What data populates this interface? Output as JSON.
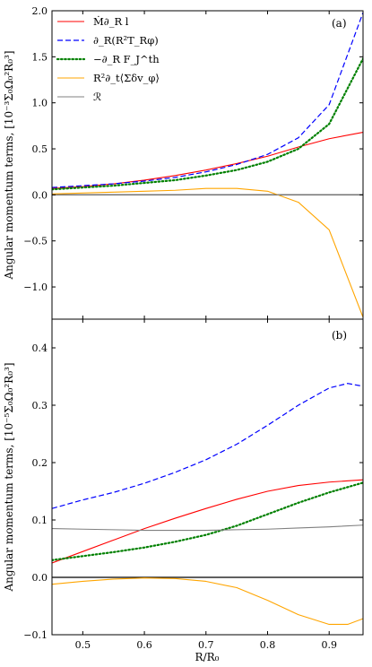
{
  "chart_data": [
    {
      "type": "line",
      "panel_label": "(a)",
      "ylabel": "Angular momentum terms, [10⁻³Σ₀Ω₀²R₀³]",
      "xlim": [
        0.45,
        0.955
      ],
      "ylim": [
        -1.35,
        2.0
      ],
      "yticks": [
        -1.0,
        -0.5,
        0.0,
        0.5,
        1.0,
        1.5,
        2.0
      ],
      "ytick_labels": [
        "−1.0",
        "−0.5",
        "0.0",
        "0.5",
        "1.0",
        "1.5",
        "2.0"
      ],
      "legend": "top-left",
      "zero_line": true,
      "series": [
        {
          "name": "Ṁ∂_R l",
          "color": "#ff0000",
          "style": "solid",
          "x": [
            0.45,
            0.5,
            0.55,
            0.6,
            0.65,
            0.7,
            0.75,
            0.8,
            0.85,
            0.9,
            0.955
          ],
          "y": [
            0.07,
            0.09,
            0.12,
            0.16,
            0.21,
            0.27,
            0.34,
            0.42,
            0.52,
            0.61,
            0.68
          ]
        },
        {
          "name": "∂_R(R²T_Rφ)",
          "color": "#0000ff",
          "style": "dashed",
          "x": [
            0.45,
            0.5,
            0.55,
            0.6,
            0.65,
            0.7,
            0.75,
            0.8,
            0.85,
            0.9,
            0.955
          ],
          "y": [
            0.08,
            0.1,
            0.12,
            0.15,
            0.19,
            0.25,
            0.33,
            0.44,
            0.62,
            0.98,
            1.98
          ]
        },
        {
          "name": "−∂_R F_J^th",
          "color": "#008000",
          "style": "dotted",
          "x": [
            0.45,
            0.5,
            0.55,
            0.6,
            0.65,
            0.7,
            0.75,
            0.8,
            0.85,
            0.9,
            0.955
          ],
          "y": [
            0.06,
            0.08,
            0.1,
            0.13,
            0.16,
            0.21,
            0.27,
            0.36,
            0.5,
            0.77,
            1.48
          ]
        },
        {
          "name": "R²∂_t⟨Σδv_φ⟩",
          "color": "#ffa500",
          "style": "solid",
          "x": [
            0.45,
            0.5,
            0.55,
            0.6,
            0.65,
            0.7,
            0.75,
            0.8,
            0.85,
            0.9,
            0.955
          ],
          "y": [
            0.01,
            0.02,
            0.03,
            0.04,
            0.05,
            0.07,
            0.07,
            0.04,
            -0.08,
            -0.38,
            -1.33
          ]
        },
        {
          "name": "ℛ",
          "color": "#808080",
          "style": "solid",
          "x": [
            0.45,
            0.55,
            0.65,
            0.75,
            0.85,
            0.955
          ],
          "y": [
            0.0,
            0.0,
            0.0,
            0.0,
            0.0,
            0.0
          ]
        }
      ]
    },
    {
      "type": "line",
      "panel_label": "(b)",
      "ylabel": "Angular momentum terms, [10⁻⁵Σ₀Ω₀²R₀³]",
      "xlabel": "R/R₀",
      "xlim": [
        0.45,
        0.955
      ],
      "ylim": [
        -0.1,
        0.45
      ],
      "xticks": [
        0.5,
        0.6,
        0.7,
        0.8,
        0.9
      ],
      "xtick_labels": [
        "0.5",
        "0.6",
        "0.7",
        "0.8",
        "0.9"
      ],
      "yticks": [
        -0.1,
        0.0,
        0.1,
        0.2,
        0.3,
        0.4
      ],
      "ytick_labels": [
        "−0.1",
        "0.0",
        "0.1",
        "0.2",
        "0.3",
        "0.4"
      ],
      "zero_line": true,
      "series": [
        {
          "name": "Ṁ∂_R l",
          "color": "#ff0000",
          "style": "solid",
          "x": [
            0.45,
            0.5,
            0.55,
            0.6,
            0.65,
            0.7,
            0.75,
            0.8,
            0.85,
            0.9,
            0.955
          ],
          "y": [
            0.025,
            0.045,
            0.065,
            0.085,
            0.103,
            0.12,
            0.136,
            0.15,
            0.16,
            0.166,
            0.17
          ]
        },
        {
          "name": "∂_R(R²T_Rφ)",
          "color": "#0000ff",
          "style": "dashed",
          "x": [
            0.45,
            0.5,
            0.55,
            0.6,
            0.65,
            0.7,
            0.75,
            0.8,
            0.85,
            0.9,
            0.93,
            0.955
          ],
          "y": [
            0.12,
            0.135,
            0.148,
            0.164,
            0.183,
            0.205,
            0.232,
            0.265,
            0.3,
            0.33,
            0.338,
            0.333
          ]
        },
        {
          "name": "−∂_R F_J^th",
          "color": "#008000",
          "style": "dotted",
          "x": [
            0.45,
            0.5,
            0.55,
            0.6,
            0.65,
            0.7,
            0.75,
            0.8,
            0.85,
            0.9,
            0.955
          ],
          "y": [
            0.03,
            0.037,
            0.044,
            0.052,
            0.062,
            0.074,
            0.09,
            0.11,
            0.13,
            0.148,
            0.165
          ]
        },
        {
          "name": "R²∂_t⟨Σδv_φ⟩",
          "color": "#ffa500",
          "style": "solid",
          "x": [
            0.45,
            0.5,
            0.55,
            0.6,
            0.65,
            0.7,
            0.75,
            0.8,
            0.85,
            0.9,
            0.93,
            0.955
          ],
          "y": [
            -0.012,
            -0.007,
            -0.003,
            -0.001,
            -0.002,
            -0.007,
            -0.018,
            -0.04,
            -0.065,
            -0.082,
            -0.082,
            -0.072
          ]
        },
        {
          "name": "ℛ",
          "color": "#808080",
          "style": "solid",
          "x": [
            0.45,
            0.5,
            0.55,
            0.6,
            0.65,
            0.7,
            0.75,
            0.8,
            0.85,
            0.9,
            0.955
          ],
          "y": [
            0.085,
            0.084,
            0.083,
            0.082,
            0.082,
            0.082,
            0.083,
            0.084,
            0.086,
            0.088,
            0.091
          ]
        }
      ]
    }
  ]
}
